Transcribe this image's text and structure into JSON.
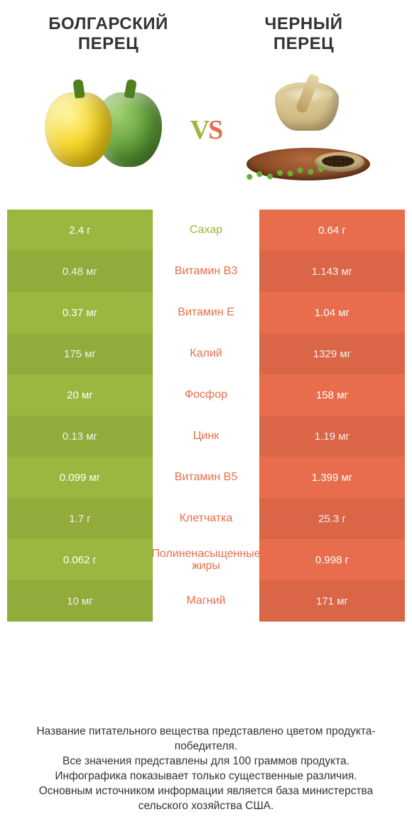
{
  "colors": {
    "left": "#9ab73f",
    "right": "#e86d4c",
    "mid_winner_left": "#9ab73f",
    "mid_winner_right": "#e86d4c"
  },
  "products": {
    "left_title": "БОЛГАРСКИЙ\nПЕРЕЦ",
    "right_title": "ЧЕРНЫЙ\nПЕРЕЦ"
  },
  "vs": {
    "v": "V",
    "s": "S"
  },
  "rows": [
    {
      "name": "Сахар",
      "left": "2.4 г",
      "right": "0.64 г",
      "winner": "left"
    },
    {
      "name": "Витамин B3",
      "left": "0.48 мг",
      "right": "1.143 мг",
      "winner": "right"
    },
    {
      "name": "Витамин E",
      "left": "0.37 мг",
      "right": "1.04 мг",
      "winner": "right"
    },
    {
      "name": "Калий",
      "left": "175 мг",
      "right": "1329 мг",
      "winner": "right"
    },
    {
      "name": "Фосфор",
      "left": "20 мг",
      "right": "158 мг",
      "winner": "right"
    },
    {
      "name": "Цинк",
      "left": "0.13 мг",
      "right": "1.19 мг",
      "winner": "right"
    },
    {
      "name": "Витамин B5",
      "left": "0.099 мг",
      "right": "1.399 мг",
      "winner": "right"
    },
    {
      "name": "Клетчатка",
      "left": "1.7 г",
      "right": "25.3 г",
      "winner": "right"
    },
    {
      "name": "Полиненасыщенные жиры",
      "left": "0.062 г",
      "right": "0.998 г",
      "winner": "right"
    },
    {
      "name": "Магний",
      "left": "10 мг",
      "right": "171 мг",
      "winner": "right"
    }
  ],
  "footer": {
    "l1": "Название питательного вещества представлено цветом продукта-победителя.",
    "l2": "Все значения представлены для 100 граммов продукта.",
    "l3": "Инфографика показывает только существенные различия.",
    "l4": "Основным источником информации является база министерства сельского хозяйства США."
  }
}
